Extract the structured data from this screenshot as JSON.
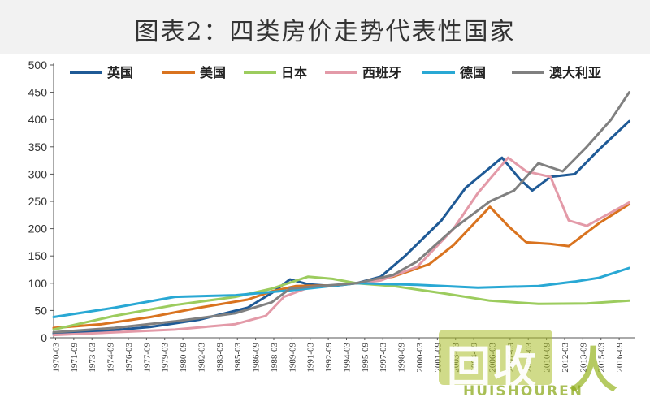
{
  "chart_data": {
    "type": "line",
    "title": "图表2：四类房价走势代表性国家",
    "ylim": [
      0,
      500
    ],
    "yticks": [
      0,
      50,
      100,
      150,
      200,
      250,
      300,
      350,
      400,
      450,
      500
    ],
    "x_tick_labels": [
      "1970-03",
      "1971-09",
      "1973-03",
      "1974-09",
      "1976-03",
      "1977-09",
      "1979-03",
      "1980-09",
      "1982-03",
      "1983-09",
      "1985-03",
      "1986-09",
      "1988-03",
      "1989-09",
      "1991-03",
      "1992-09",
      "1994-03",
      "1995-09",
      "1997-03",
      "1998-09",
      "2000-03",
      "2001-09",
      "2003-03",
      "2004-09",
      "2006-03",
      "2007-09",
      "2009-03",
      "2010-09",
      "2012-03",
      "2013-09",
      "2015-03",
      "2016-09"
    ],
    "legend_position": "top",
    "series": [
      {
        "name": "英国",
        "color": "#1f5a96",
        "x": [
          1970,
          1974,
          1978,
          1982,
          1986,
          1988,
          1989.5,
          1991,
          1993,
          1995,
          1997,
          1999,
          2002,
          2004,
          2007,
          2008.5,
          2009.5,
          2011,
          2013,
          2015,
          2017.5
        ],
        "y": [
          8,
          12,
          20,
          33,
          55,
          82,
          107,
          98,
          95,
          100,
          112,
          150,
          215,
          275,
          330,
          290,
          270,
          295,
          300,
          345,
          397
        ]
      },
      {
        "name": "美国",
        "color": "#d9731f",
        "x": [
          1970,
          1974,
          1978,
          1982,
          1986,
          1988,
          1990,
          1993,
          1995,
          1998,
          2001,
          2003,
          2006,
          2007.5,
          2009,
          2011,
          2012.5,
          2015,
          2017.5
        ],
        "y": [
          18,
          25,
          38,
          55,
          70,
          85,
          95,
          96,
          100,
          112,
          135,
          170,
          240,
          205,
          175,
          172,
          168,
          210,
          245
        ]
      },
      {
        "name": "日本",
        "color": "#9ccc5e",
        "x": [
          1970,
          1973,
          1975,
          1980,
          1985,
          1988,
          1991,
          1993,
          1995,
          1998,
          2002,
          2006,
          2010,
          2014,
          2017.5
        ],
        "y": [
          15,
          30,
          40,
          60,
          75,
          90,
          112,
          108,
          100,
          95,
          82,
          68,
          62,
          63,
          68
        ]
      },
      {
        "name": "西班牙",
        "color": "#e39aa8",
        "x": [
          1970,
          1975,
          1980,
          1985,
          1987.5,
          1989,
          1991,
          1995,
          1997,
          2000,
          2003,
          2005,
          2007.5,
          2009,
          2011,
          2012.5,
          2014,
          2017.5
        ],
        "y": [
          5,
          10,
          15,
          25,
          40,
          75,
          92,
          100,
          105,
          130,
          200,
          265,
          330,
          305,
          295,
          215,
          205,
          248
        ]
      },
      {
        "name": "德国",
        "color": "#29a8d4",
        "x": [
          1970,
          1975,
          1980,
          1985,
          1990,
          1995,
          2000,
          2005,
          2010,
          2013,
          2015,
          2017.5
        ],
        "y": [
          38,
          55,
          75,
          78,
          88,
          100,
          97,
          92,
          95,
          103,
          110,
          128
        ]
      },
      {
        "name": "澳大利亚",
        "color": "#808080",
        "x": [
          1970,
          1975,
          1980,
          1985,
          1988,
          1989.5,
          1992,
          1995,
          1998,
          2000,
          2003,
          2006,
          2008,
          2010,
          2012,
          2014,
          2016,
          2017.5
        ],
        "y": [
          10,
          18,
          30,
          45,
          65,
          90,
          95,
          100,
          115,
          140,
          200,
          250,
          270,
          320,
          305,
          350,
          400,
          450
        ]
      }
    ]
  }
}
